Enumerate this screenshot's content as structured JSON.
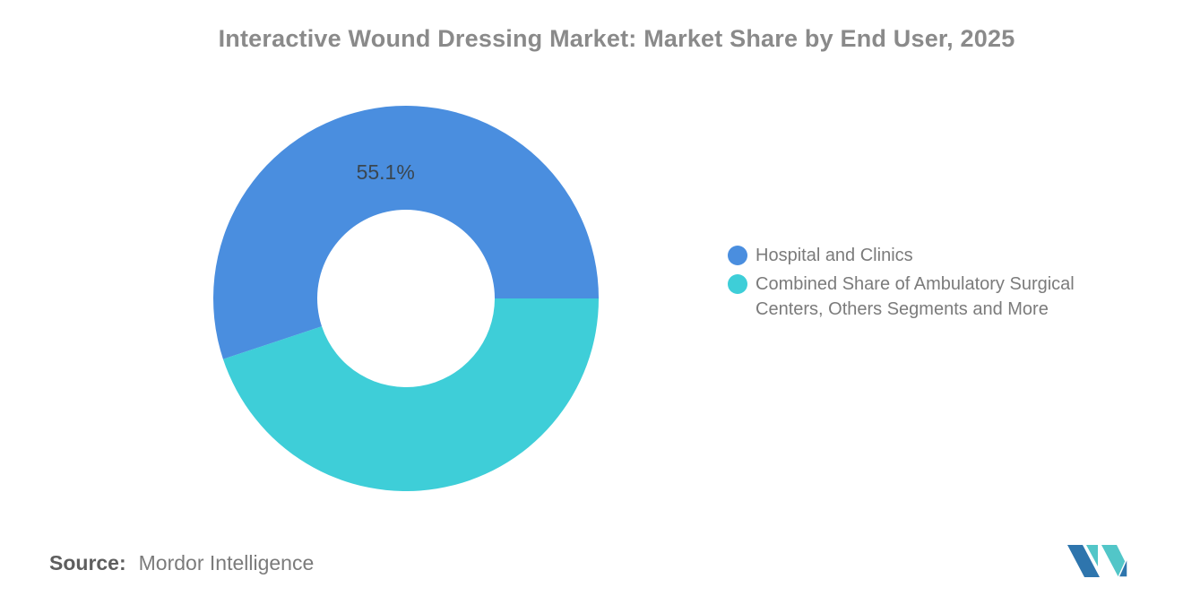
{
  "title": "Interactive Wound Dressing Market: Market Share by End User, 2025",
  "chart_data": {
    "type": "pie",
    "subtype": "donut",
    "title": "Interactive Wound Dressing Market: Market Share by End User, 2025",
    "unit": "%",
    "segments": [
      {
        "label": "Hospital and Clinics",
        "value": 55.1,
        "data_label": "55.1%",
        "color": "#4A8EDF"
      },
      {
        "label": "Combined Share of Ambulatory Surgical Centers, Others Segments and More",
        "value": 44.9,
        "data_label": null,
        "color": "#3ECED8"
      }
    ],
    "start_position": "right-counterclockwise",
    "inner_radius_ratio": 0.46,
    "legend_position": "right",
    "data_label_color": "#3A4650",
    "background": "#FFFFFF"
  },
  "legend": {
    "items": [
      {
        "color": "#4A8EDF"
      },
      {
        "color": "#3ECED8"
      }
    ]
  },
  "source": {
    "prefix": "Source:",
    "name": "Mordor Intelligence"
  },
  "logo": {
    "name": "mordor-intelligence-logo",
    "blue": "#2E75AD",
    "teal": "#52C6C8"
  },
  "colors": {
    "title_text": "#8A8A8A",
    "legend_text": "#7B7B7B",
    "source_prefix_text": "#5E5E5E",
    "source_name_text": "#7B7B7B"
  }
}
